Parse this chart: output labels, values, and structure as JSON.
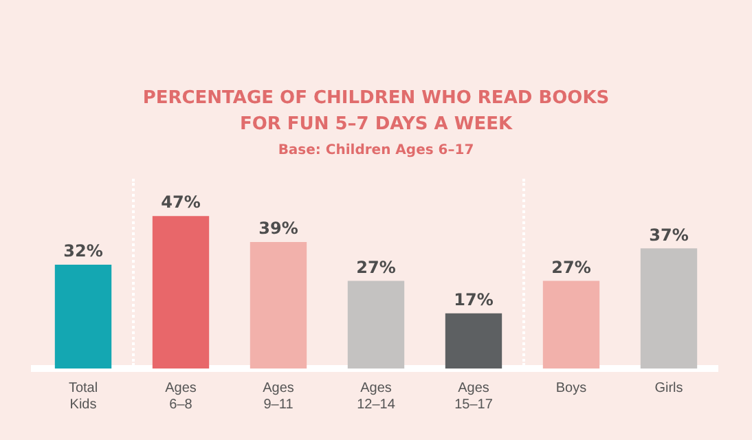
{
  "chart_data": {
    "type": "bar",
    "title": "PERCENTAGE OF CHILDREN WHO READ BOOKS FOR FUN 5–7 DAYS A WEEK",
    "subtitle": "Base: Children Ages 6–17",
    "categories": [
      "Total Kids",
      "Ages 6–8",
      "Ages 9–11",
      "Ages 12–14",
      "Ages 15–17",
      "Boys",
      "Girls"
    ],
    "values": [
      32,
      47,
      39,
      27,
      17,
      27,
      37
    ],
    "colors": [
      "#14a7b2",
      "#e8676a",
      "#f2b1ab",
      "#c4c2c1",
      "#5d6062",
      "#f2b1ab",
      "#c4c2c1"
    ],
    "value_labels": [
      "32%",
      "47%",
      "39%",
      "27%",
      "17%",
      "27%",
      "37%"
    ],
    "grid": false,
    "legend": false
  }
}
